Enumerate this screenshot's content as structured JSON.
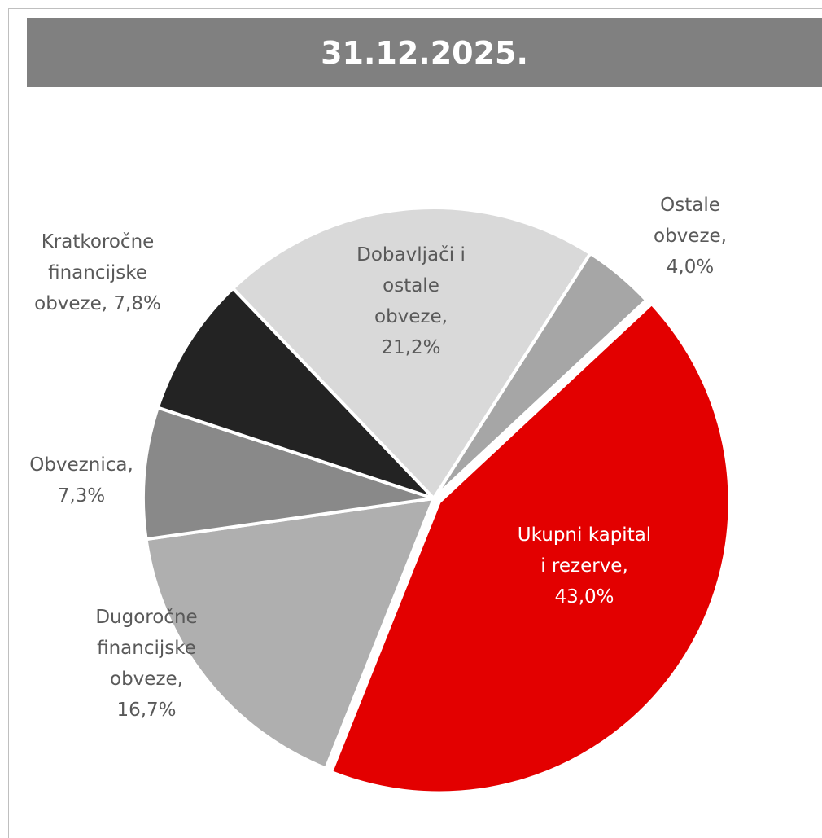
{
  "chart_data": {
    "type": "pie",
    "title": "31.12.2025.",
    "categories": [
      "Ukupni kapital i rezerve,",
      "Dugoročne financijske obveze,",
      "Obveznica,",
      "Kratkoročne financijske obveze,",
      "Dobavljači i ostale obveze,",
      "Ostale obveze,"
    ],
    "values": [
      43.0,
      16.7,
      7.3,
      7.8,
      21.2,
      4.0
    ],
    "value_labels": [
      "43,0%",
      "16,7%",
      "7,3%",
      "7,8%",
      "21,2%",
      "4,0%"
    ],
    "colors": [
      "#e30000",
      "#afafaf",
      "#898989",
      "#232323",
      "#d9d9d9",
      "#a6a6a6"
    ]
  }
}
